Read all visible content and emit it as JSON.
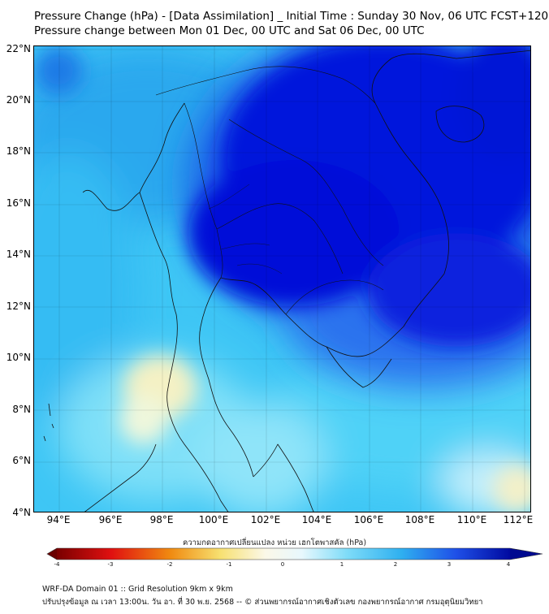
{
  "header": {
    "title": "Pressure Change (hPa) - [Data Assimilation] _ Initial Time : Sunday 30 Nov, 06 UTC FCST+120",
    "subtitle": "Pressure change between Mon 01 Dec, 00 UTC and Sat 06 Dec, 00 UTC"
  },
  "map": {
    "lat_labels": [
      "22°N",
      "20°N",
      "18°N",
      "16°N",
      "14°N",
      "12°N",
      "10°N",
      "8°N",
      "6°N",
      "4°N"
    ],
    "lon_labels": [
      "94°E",
      "96°E",
      "98°E",
      "100°E",
      "102°E",
      "104°E",
      "106°E",
      "108°E",
      "110°E",
      "112°E"
    ],
    "lat_range": [
      4,
      22
    ],
    "lon_range": [
      93,
      112.3
    ],
    "grid": true
  },
  "colorbar": {
    "title": "ความกดอากาศเปลี่ยนแปลง หน่วย เฮกโตพาสคัล (hPa)",
    "range": [
      -4,
      4
    ],
    "ticks": [
      "-4",
      "-3",
      "-2",
      "-1",
      "0",
      "1",
      "2",
      "3",
      "4"
    ]
  },
  "footer": {
    "line1": "WRF-DA Domain 01 :: Grid Resolution 9km x 9km",
    "line2": "ปรับปรุงข้อมูล ณ เวลา 13:00น. วัน อา. ที่ 30 พ.ย. 2568 -- © ส่วนพยากรณ์อากาศเชิงตัวเลข กองพยากรณ์อากาศ กรมอุตุนิยมวิทยา"
  },
  "colors": {
    "deep_blue": "#0010dc",
    "mid_blue": "#1f6cf0",
    "light_blue": "#2fb8f2",
    "cyan": "#54d6f8",
    "pale_cyan": "#bfeefc",
    "pale_yellow": "#f6f0b8"
  }
}
